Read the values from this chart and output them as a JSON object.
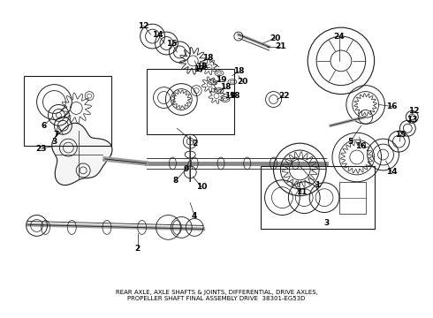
{
  "background_color": "#ffffff",
  "line_color": "#1a1a1a",
  "label_color": "#000000",
  "fig_w": 4.9,
  "fig_h": 3.6,
  "dpi": 100,
  "label_fontsize": 6.5,
  "title_text": "REAR AXLE, AXLE SHAFTS & JOINTS, DIFFERENTIAL, DRIVE AXLES,\nPROPELLER SHAFT FINAL ASSEMBLY DRIVE  38301-EG53D",
  "title_fontsize": 5.0
}
